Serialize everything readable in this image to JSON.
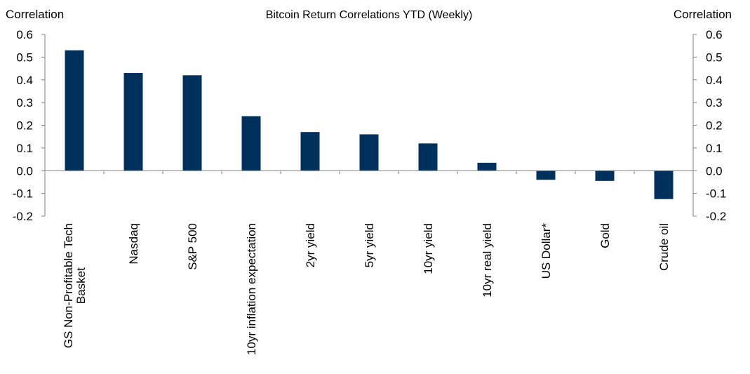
{
  "chart_data": {
    "type": "bar",
    "title": "Bitcoin Return Correlations YTD (Weekly)",
    "ylabel_left": "Correlation",
    "ylabel_right": "Correlation",
    "xlabel": "",
    "ylim": [
      -0.2,
      0.6
    ],
    "yticks": [
      "0.6",
      "0.5",
      "0.4",
      "0.3",
      "0.2",
      "0.1",
      "0.0",
      "-0.1",
      "-0.2"
    ],
    "categories": [
      [
        "GS Non-Profitable Tech",
        "Basket"
      ],
      [
        "Nasdaq"
      ],
      [
        "S&P 500"
      ],
      [
        "10yr inflation expectation"
      ],
      [
        "2yr yield"
      ],
      [
        "5yr yield"
      ],
      [
        "10yr yield"
      ],
      [
        "10yr real yield"
      ],
      [
        "US Dollar*"
      ],
      [
        "Gold"
      ],
      [
        "Crude oil"
      ]
    ],
    "values": [
      0.53,
      0.43,
      0.42,
      0.24,
      0.17,
      0.16,
      0.12,
      0.035,
      -0.04,
      -0.045,
      -0.125
    ],
    "bar_color": "#00305C",
    "grid": false,
    "legend": "none"
  }
}
